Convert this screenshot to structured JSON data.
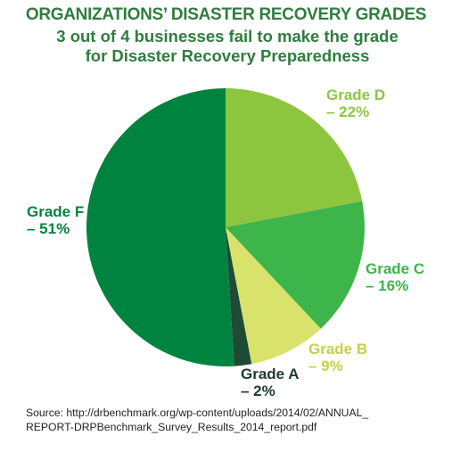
{
  "chart_data": {
    "type": "pie",
    "title": "ORGANIZATIONS’ DISASTER RECOVERY GRADES",
    "subtitle": "3 out of 4 businesses fail to make the grade for Disaster Recovery Preparedness",
    "categories": [
      "D",
      "C",
      "B",
      "A",
      "F"
    ],
    "values": [
      22,
      16,
      9,
      2,
      51
    ],
    "value_labels": [
      "Grade D – 22%",
      "Grade C – 16%",
      "Grade B – 9%",
      "Grade A – 2%",
      "Grade F – 51%"
    ],
    "colors": [
      "#8cc63f",
      "#3db54a",
      "#d9e36c",
      "#1f4a36",
      "#00833f"
    ],
    "label_colors": [
      "#8cc63f",
      "#3db54a",
      "#c5d04a",
      "#1f3a2c",
      "#00833f"
    ],
    "source": [
      "Source: http://drbenchmark.org/wp-content/uploads/2014/02/ANNUAL_",
      "REPORT-DRPBenchmark_Survey_Results_2014_report.pdf"
    ]
  }
}
